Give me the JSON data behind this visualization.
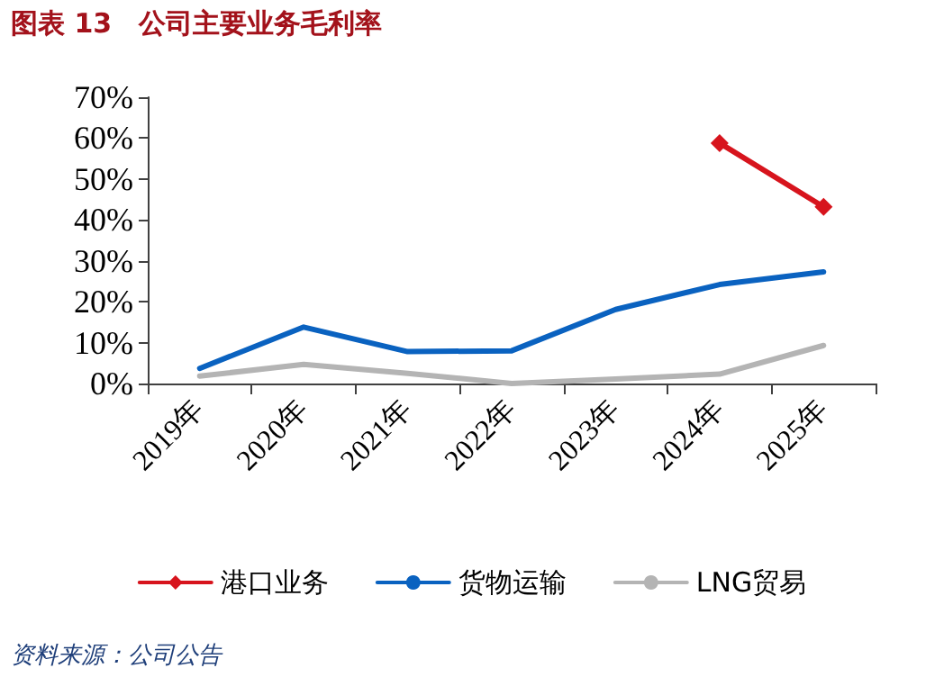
{
  "chart_data": {
    "type": "line",
    "title": "图表 13　公司主要业务毛利率",
    "categories": [
      "2019年",
      "2020年",
      "2021年",
      "2022年",
      "2023年",
      "2024年",
      "2025年"
    ],
    "series": [
      {
        "name": "港口业务",
        "color": "#d7141d",
        "marker": "diamond",
        "values": [
          null,
          null,
          null,
          null,
          null,
          58.8,
          43.2
        ]
      },
      {
        "name": "货物运输",
        "color": "#0a62c0",
        "marker": "none",
        "values": [
          3.7,
          13.8,
          7.8,
          8.0,
          18.1,
          24.2,
          27.3
        ]
      },
      {
        "name": "LNG贸易",
        "color": "#b4b4b4",
        "marker": "none",
        "values": [
          1.8,
          4.7,
          2.5,
          0,
          1.1,
          2.3,
          9.3
        ]
      }
    ],
    "ylim": [
      0,
      70
    ],
    "yticks": [
      {
        "value": 0,
        "label": "0%"
      },
      {
        "value": 10,
        "label": "10%"
      },
      {
        "value": 20,
        "label": "20%"
      },
      {
        "value": 30,
        "label": "30%"
      },
      {
        "value": 40,
        "label": "40%"
      },
      {
        "value": 50,
        "label": "50%"
      },
      {
        "value": 60,
        "label": "60%"
      },
      {
        "value": 70,
        "label": "70%"
      }
    ],
    "grid": false,
    "legend": "bottom",
    "line_style": "solid",
    "annotations": [
      "资料来源：公司公告"
    ]
  }
}
